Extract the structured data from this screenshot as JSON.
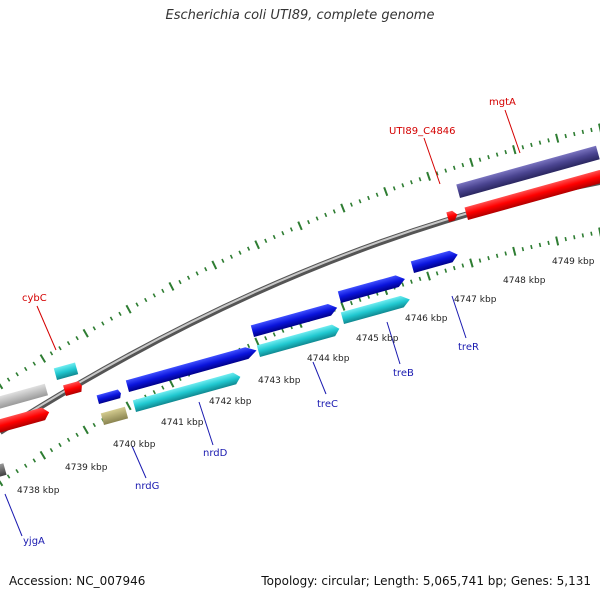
{
  "title": "Escherichia coli UTI89, complete genome",
  "footer": {
    "accession": "Accession: NC_007946",
    "summary": "Topology: circular; Length: 5,065,741 bp; Genes: 5,131"
  },
  "colors": {
    "backbone": "#8a8a8a",
    "forward_tick": "#2e7d32",
    "label_red": "#d40000",
    "label_blue": "#1a1ab0",
    "gene_red": "#ff0000",
    "gene_blue": "#0a14dc",
    "gene_cyan": "#20c8d0",
    "gene_navy": "#4a4490",
    "gene_gray": "#c0c0c0",
    "gene_olive": "#b8b070",
    "gene_darkgray": "#707070"
  },
  "scale_labels": [
    "4738 kbp",
    "4739 kbp",
    "4740 kbp",
    "4741 kbp",
    "4742 kbp",
    "4743 kbp",
    "4744 kbp",
    "4745 kbp",
    "4746 kbp",
    "4747 kbp",
    "4748 kbp",
    "4749 kbp"
  ],
  "gene_labels": {
    "mgtA": "mgtA",
    "UTI89_C4846": "UTI89_C4846",
    "cybC": "cybC",
    "treR": "treR",
    "treB": "treB",
    "treC": "treC",
    "nrdD": "nrdD",
    "nrdG": "nrdG",
    "yjgA": "yjgA"
  }
}
